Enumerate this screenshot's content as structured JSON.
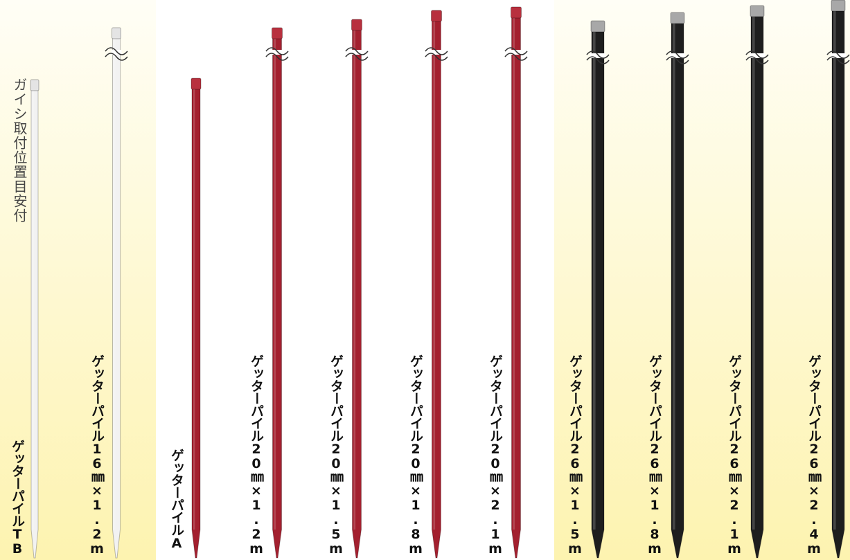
{
  "annotation": "ガイシ取付位置目安付",
  "products": [
    {
      "label": "ゲッターパイルTB"
    },
    {
      "label": "ゲッターパイル16㎜×1.2m"
    },
    {
      "label": "ゲッターパイルA"
    },
    {
      "label": "ゲッターパイル20㎜×1.2m"
    },
    {
      "label": "ゲッターパイル20㎜×1.5m"
    },
    {
      "label": "ゲッターパイル20㎜×1.8m"
    },
    {
      "label": "ゲッターパイル20㎜×2.1m"
    },
    {
      "label": "ゲッターパイル26㎜×1.5m"
    },
    {
      "label": "ゲッターパイル26㎜×1.8m"
    },
    {
      "label": "ゲッターパイル26㎜×2.1m"
    },
    {
      "label": "ゲッターパイル26㎜×2.4m"
    }
  ]
}
